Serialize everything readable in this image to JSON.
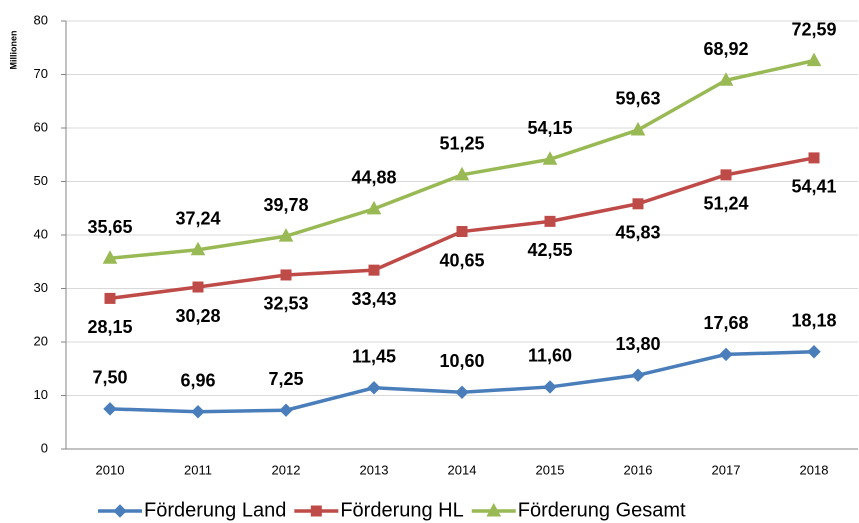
{
  "chart_data": {
    "type": "line",
    "y_axis_label": "Millionen",
    "categories": [
      "2010",
      "2011",
      "2012",
      "2013",
      "2014",
      "2015",
      "2016",
      "2017",
      "2018"
    ],
    "series": [
      {
        "name": "Förderung Land",
        "color": "#4a7ebb",
        "values": [
          7.5,
          6.96,
          7.25,
          11.45,
          10.6,
          11.6,
          13.8,
          17.68,
          18.18
        ],
        "value_labels": [
          "7,50",
          "6,96",
          "7,25",
          "11,45",
          "10,60",
          "11,60",
          "13,80",
          "17,68",
          "18,18"
        ]
      },
      {
        "name": "Förderung HL",
        "color": "#be4b48",
        "values": [
          28.15,
          30.28,
          32.53,
          33.43,
          40.65,
          42.55,
          45.83,
          51.24,
          54.41
        ],
        "value_labels": [
          "28,15",
          "30,28",
          "32,53",
          "33,43",
          "40,65",
          "42,55",
          "45,83",
          "51,24",
          "54,41"
        ]
      },
      {
        "name": "Förderung Gesamt",
        "color": "#98b954",
        "values": [
          35.65,
          37.24,
          39.78,
          44.88,
          51.25,
          54.15,
          59.63,
          68.92,
          72.59
        ],
        "value_labels": [
          "35,65",
          "37,24",
          "39,78",
          "44,88",
          "51,25",
          "54,15",
          "59,63",
          "68,92",
          "72,59"
        ]
      }
    ],
    "ylim": [
      0,
      80
    ],
    "yticks": [
      0,
      10,
      20,
      30,
      40,
      50,
      60,
      70,
      80
    ],
    "grid": true,
    "legend": "bottom"
  }
}
